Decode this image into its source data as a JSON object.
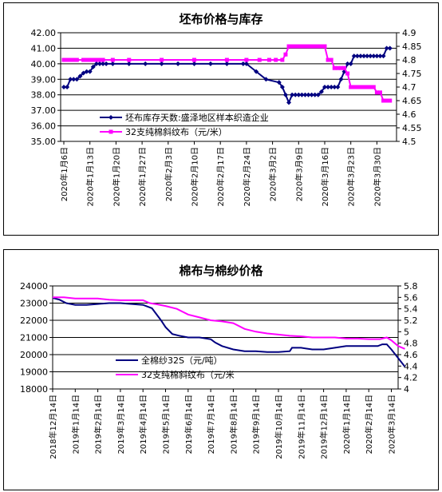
{
  "chart_data": [
    {
      "type": "line",
      "title": "坯布价格与库存",
      "legend_position": "bottom-left inside",
      "grid": "horizontal",
      "y_left": {
        "ylim": [
          35,
          42
        ],
        "ticks": [
          "35.00",
          "36.00",
          "37.00",
          "38.00",
          "39.00",
          "40.00",
          "41.00",
          "42.00"
        ]
      },
      "y_right": {
        "ylim": [
          4.5,
          4.9
        ],
        "ticks": [
          "4.5",
          "4.55",
          "4.6",
          "4.65",
          "4.7",
          "4.75",
          "4.8",
          "4.85",
          "4.9"
        ]
      },
      "x_ticks": [
        "2020年1月6日",
        "2020年1月13日",
        "2020年1月20日",
        "2020年1月27日",
        "2020年2月3日",
        "2020年2月10日",
        "2020年2月17日",
        "2020年2月24日",
        "2020年3月2日",
        "2020年3月9日",
        "2020年3月16日",
        "2020年3月23日",
        "2020年3月30日"
      ],
      "series": [
        {
          "name": "坯布库存天数:盛泽地区样本织造企业",
          "axis": "left",
          "color": "#000080",
          "marker": "diamond",
          "points": [
            [
              0,
              38.5
            ],
            [
              1,
              38.5
            ],
            [
              2,
              39
            ],
            [
              3,
              39
            ],
            [
              4,
              39
            ],
            [
              5,
              39.2
            ],
            [
              6,
              39.4
            ],
            [
              7,
              39.5
            ],
            [
              8,
              39.5
            ],
            [
              9,
              39.8
            ],
            [
              10,
              40
            ],
            [
              11,
              40
            ],
            [
              12,
              40
            ],
            [
              13,
              40
            ],
            [
              15,
              40
            ],
            [
              20,
              40
            ],
            [
              25,
              40
            ],
            [
              30,
              40
            ],
            [
              35,
              40
            ],
            [
              40,
              40
            ],
            [
              45,
              40
            ],
            [
              50,
              40
            ],
            [
              55,
              40
            ],
            [
              56,
              40
            ],
            [
              59,
              39.5
            ],
            [
              62,
              39
            ],
            [
              66,
              38.8
            ],
            [
              67,
              38.5
            ],
            [
              68,
              38
            ],
            [
              69,
              37.5
            ],
            [
              70,
              38
            ],
            [
              71,
              38
            ],
            [
              72,
              38
            ],
            [
              73,
              38
            ],
            [
              74,
              38
            ],
            [
              75,
              38
            ],
            [
              76,
              38
            ],
            [
              77,
              38
            ],
            [
              78,
              38
            ],
            [
              79,
              38.2
            ],
            [
              80,
              38.5
            ],
            [
              81,
              38.5
            ],
            [
              82,
              38.5
            ],
            [
              83,
              38.5
            ],
            [
              84,
              38.5
            ],
            [
              85,
              39
            ],
            [
              86,
              39.5
            ],
            [
              87,
              40
            ],
            [
              88,
              40
            ],
            [
              89,
              40.5
            ],
            [
              90,
              40.5
            ],
            [
              91,
              40.5
            ],
            [
              92,
              40.5
            ],
            [
              93,
              40.5
            ],
            [
              94,
              40.5
            ],
            [
              95,
              40.5
            ],
            [
              96,
              40.5
            ],
            [
              97,
              40.5
            ],
            [
              98,
              40.5
            ],
            [
              99,
              41
            ],
            [
              100,
              41
            ]
          ]
        },
        {
          "name": "32支纯棉斜纹布（元/米）",
          "axis": "right",
          "color": "#ff00ff",
          "marker": "square",
          "points": [
            [
              0,
              4.8
            ],
            [
              1,
              4.8
            ],
            [
              2,
              4.8
            ],
            [
              3,
              4.8
            ],
            [
              4,
              4.8
            ],
            [
              6,
              4.8
            ],
            [
              7,
              4.8
            ],
            [
              8,
              4.8
            ],
            [
              9,
              4.8
            ],
            [
              10,
              4.8
            ],
            [
              11,
              4.8
            ],
            [
              12,
              4.8
            ],
            [
              15,
              4.8
            ],
            [
              20,
              4.8
            ],
            [
              30,
              4.8
            ],
            [
              40,
              4.8
            ],
            [
              50,
              4.8
            ],
            [
              56,
              4.8
            ],
            [
              60,
              4.8
            ],
            [
              63,
              4.8
            ],
            [
              65,
              4.8
            ],
            [
              67,
              4.8
            ],
            [
              68,
              4.82
            ],
            [
              69,
              4.85
            ],
            [
              70,
              4.85
            ],
            [
              71,
              4.85
            ],
            [
              72,
              4.85
            ],
            [
              73,
              4.85
            ],
            [
              74,
              4.85
            ],
            [
              75,
              4.85
            ],
            [
              76,
              4.85
            ],
            [
              77,
              4.85
            ],
            [
              78,
              4.85
            ],
            [
              79,
              4.85
            ],
            [
              80,
              4.85
            ],
            [
              81,
              4.8
            ],
            [
              82,
              4.8
            ],
            [
              83,
              4.77
            ],
            [
              84,
              4.77
            ],
            [
              85,
              4.77
            ],
            [
              86,
              4.77
            ],
            [
              87,
              4.75
            ],
            [
              88,
              4.7
            ],
            [
              89,
              4.7
            ],
            [
              90,
              4.7
            ],
            [
              91,
              4.7
            ],
            [
              92,
              4.7
            ],
            [
              93,
              4.7
            ],
            [
              94,
              4.7
            ],
            [
              95,
              4.7
            ],
            [
              96,
              4.68
            ],
            [
              97,
              4.68
            ],
            [
              98,
              4.65
            ],
            [
              99,
              4.65
            ],
            [
              100,
              4.65
            ]
          ]
        }
      ]
    },
    {
      "type": "line",
      "title": "棉布与棉纱价格",
      "legend_position": "bottom-left inside",
      "grid": "horizontal",
      "y_left": {
        "ylim": [
          18000,
          24000
        ],
        "ticks": [
          "18000",
          "19000",
          "20000",
          "21000",
          "22000",
          "23000",
          "24000"
        ]
      },
      "y_right": {
        "ylim": [
          4,
          5.8
        ],
        "ticks": [
          "4",
          "4.2",
          "4.4",
          "4.6",
          "4.8",
          "5",
          "5.2",
          "5.4",
          "5.6",
          "5.8"
        ]
      },
      "x_ticks": [
        "2018年12月14日",
        "2019年1月14日",
        "2019年2月14日",
        "2019年3月14日",
        "2019年4月14日",
        "2019年5月14日",
        "2019年6月14日",
        "2019年7月14日",
        "2019年8月14日",
        "2019年9月14日",
        "2019年10月14日",
        "2019年11月14日",
        "2019年12月14日",
        "2020年1月14日",
        "2020年2月14日",
        "2020年3月14日"
      ],
      "series": [
        {
          "name": "全棉纱32S（元/吨）",
          "axis": "left",
          "color": "#000080",
          "points": [
            [
              0,
              23300
            ],
            [
              0.3,
              23200
            ],
            [
              0.6,
              23000
            ],
            [
              1,
              22900
            ],
            [
              1.5,
              22900
            ],
            [
              2,
              22950
            ],
            [
              2.5,
              23000
            ],
            [
              3,
              23000
            ],
            [
              3.5,
              22950
            ],
            [
              4,
              22900
            ],
            [
              4.4,
              22700
            ],
            [
              4.8,
              22000
            ],
            [
              5,
              21600
            ],
            [
              5.3,
              21200
            ],
            [
              5.6,
              21100
            ],
            [
              6,
              21000
            ],
            [
              6.5,
              21000
            ],
            [
              7,
              20900
            ],
            [
              7.2,
              20700
            ],
            [
              7.5,
              20500
            ],
            [
              8,
              20300
            ],
            [
              8.5,
              20200
            ],
            [
              9,
              20200
            ],
            [
              9.5,
              20150
            ],
            [
              10,
              20150
            ],
            [
              10.5,
              20200
            ],
            [
              10.6,
              20400
            ],
            [
              11,
              20400
            ],
            [
              11.5,
              20300
            ],
            [
              12,
              20300
            ],
            [
              12.5,
              20400
            ],
            [
              13,
              20500
            ],
            [
              13.5,
              20500
            ],
            [
              14,
              20500
            ],
            [
              14.4,
              20500
            ],
            [
              14.6,
              20600
            ],
            [
              14.8,
              20600
            ],
            [
              15,
              20300
            ],
            [
              15.3,
              19800
            ],
            [
              15.6,
              19300
            ]
          ]
        },
        {
          "name": "32支纯棉斜纹布（元/米",
          "axis": "right",
          "color": "#ff00ff",
          "points": [
            [
              0,
              5.6
            ],
            [
              0.5,
              5.6
            ],
            [
              1,
              5.58
            ],
            [
              1.5,
              5.58
            ],
            [
              2,
              5.58
            ],
            [
              2.5,
              5.56
            ],
            [
              3,
              5.55
            ],
            [
              3.5,
              5.55
            ],
            [
              4,
              5.55
            ],
            [
              4.3,
              5.5
            ],
            [
              4.6,
              5.48
            ],
            [
              5,
              5.45
            ],
            [
              5.5,
              5.4
            ],
            [
              6,
              5.3
            ],
            [
              6.5,
              5.25
            ],
            [
              7,
              5.2
            ],
            [
              7.5,
              5.18
            ],
            [
              8,
              5.15
            ],
            [
              8.5,
              5.05
            ],
            [
              9,
              5
            ],
            [
              9.5,
              4.97
            ],
            [
              10,
              4.95
            ],
            [
              10.5,
              4.93
            ],
            [
              11,
              4.92
            ],
            [
              11.5,
              4.9
            ],
            [
              12,
              4.9
            ],
            [
              12.5,
              4.9
            ],
            [
              13,
              4.88
            ],
            [
              13.5,
              4.88
            ],
            [
              14,
              4.87
            ],
            [
              14.5,
              4.87
            ],
            [
              14.8,
              4.9
            ],
            [
              15,
              4.85
            ],
            [
              15.3,
              4.75
            ],
            [
              15.6,
              4.7
            ]
          ]
        }
      ]
    }
  ]
}
